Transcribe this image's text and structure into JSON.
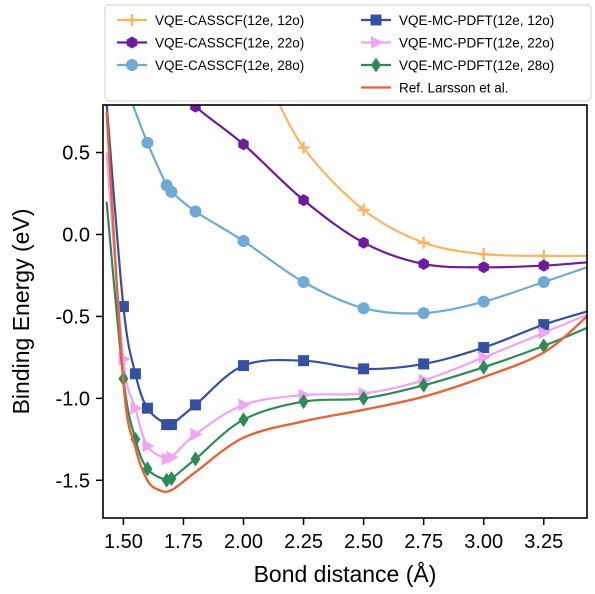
{
  "chart_data": {
    "type": "line",
    "title": "",
    "xlabel": "Bond distance (Å)",
    "ylabel": "Binding Energy (eV)",
    "xlim": [
      1.415,
      3.43
    ],
    "ylim": [
      -1.73,
      0.79
    ],
    "xticks": [
      1.5,
      1.75,
      2.0,
      2.25,
      2.5,
      2.75,
      3.0,
      3.25
    ],
    "xtick_labels": [
      "1.50",
      "1.75",
      "2.00",
      "2.25",
      "2.50",
      "2.75",
      "3.00",
      "3.25"
    ],
    "yticks": [
      -1.5,
      -1.0,
      -0.5,
      0.0,
      0.5
    ],
    "ytick_labels": [
      "-1.5",
      "-1.0",
      "-0.5",
      "0.0",
      "0.5"
    ],
    "grid": false,
    "legend_position": "top, two columns",
    "series": [
      {
        "name": "VQE-CASSCF(12e, 12o)",
        "color": "#fbb661",
        "marker": "plus",
        "x": [
          2.25,
          2.5,
          2.75,
          3.0,
          3.25
        ],
        "y": [
          0.53,
          0.15,
          -0.05,
          -0.12,
          -0.13
        ],
        "curve_x": [
          2.1,
          2.25,
          2.5,
          2.75,
          3.0,
          3.25,
          3.43
        ],
        "curve_y": [
          0.95,
          0.53,
          0.15,
          -0.05,
          -0.12,
          -0.13,
          -0.13
        ]
      },
      {
        "name": "VQE-CASSCF(12e, 22o)",
        "color": "#6e1b9e",
        "marker": "hexagon",
        "x": [
          1.8,
          2.0,
          2.25,
          2.5,
          2.75,
          3.0,
          3.25
        ],
        "y": [
          0.78,
          0.55,
          0.21,
          -0.05,
          -0.18,
          -0.2,
          -0.19
        ],
        "curve_x": [
          1.7,
          1.8,
          2.0,
          2.25,
          2.5,
          2.75,
          3.0,
          3.25,
          3.43
        ],
        "curve_y": [
          0.95,
          0.78,
          0.55,
          0.21,
          -0.05,
          -0.18,
          -0.2,
          -0.19,
          -0.17
        ]
      },
      {
        "name": "VQE-CASSCF(12e, 28o)",
        "color": "#6faad5",
        "marker": "circle",
        "x": [
          1.6,
          1.68,
          1.7,
          1.8,
          2.0,
          2.25,
          2.5,
          2.75,
          3.0,
          3.25
        ],
        "y": [
          0.56,
          0.3,
          0.26,
          0.14,
          -0.04,
          -0.29,
          -0.45,
          -0.48,
          -0.41,
          -0.29
        ],
        "curve_x": [
          1.5,
          1.55,
          1.6,
          1.68,
          1.7,
          1.8,
          2.0,
          2.25,
          2.5,
          2.75,
          3.0,
          3.25,
          3.43
        ],
        "curve_y": [
          0.95,
          0.75,
          0.56,
          0.3,
          0.26,
          0.14,
          -0.04,
          -0.29,
          -0.45,
          -0.48,
          -0.41,
          -0.29,
          -0.2
        ]
      },
      {
        "name": "VQE-MC-PDFT(12e, 12o)",
        "color": "#3450a2",
        "marker": "square",
        "x": [
          1.5,
          1.55,
          1.6,
          1.68,
          1.7,
          1.8,
          2.0,
          2.25,
          2.5,
          2.75,
          3.0,
          3.25
        ],
        "y": [
          -0.44,
          -0.85,
          -1.06,
          -1.16,
          -1.16,
          -1.04,
          -0.8,
          -0.77,
          -0.82,
          -0.79,
          -0.69,
          -0.55
        ],
        "curve_x": [
          1.43,
          1.5,
          1.55,
          1.6,
          1.68,
          1.7,
          1.8,
          2.0,
          2.25,
          2.5,
          2.75,
          3.0,
          3.25,
          3.43
        ],
        "curve_y": [
          0.8,
          -0.44,
          -0.85,
          -1.06,
          -1.16,
          -1.16,
          -1.04,
          -0.8,
          -0.77,
          -0.82,
          -0.79,
          -0.69,
          -0.55,
          -0.47
        ]
      },
      {
        "name": "VQE-MC-PDFT(12e, 22o)",
        "color": "#f0a4f3",
        "marker": "triangle-right",
        "x": [
          1.5,
          1.55,
          1.6,
          1.68,
          1.7,
          1.8,
          2.0,
          2.25,
          2.5,
          2.75,
          3.0,
          3.25
        ],
        "y": [
          -0.76,
          -1.06,
          -1.29,
          -1.37,
          -1.36,
          -1.22,
          -1.04,
          -0.98,
          -0.97,
          -0.89,
          -0.75,
          -0.6
        ],
        "curve_x": [
          1.43,
          1.5,
          1.55,
          1.6,
          1.68,
          1.7,
          1.8,
          2.0,
          2.25,
          2.5,
          2.75,
          3.0,
          3.25,
          3.43
        ],
        "curve_y": [
          0.5,
          -0.76,
          -1.06,
          -1.29,
          -1.37,
          -1.36,
          -1.22,
          -1.04,
          -0.98,
          -0.97,
          -0.89,
          -0.75,
          -0.6,
          -0.49
        ]
      },
      {
        "name": "VQE-MC-PDFT(12e, 28o)",
        "color": "#2e8b57",
        "marker": "diamond",
        "x": [
          1.5,
          1.55,
          1.6,
          1.68,
          1.7,
          1.8,
          2.0,
          2.25,
          2.5,
          2.75,
          3.0,
          3.25
        ],
        "y": [
          -0.88,
          -1.25,
          -1.43,
          -1.5,
          -1.49,
          -1.37,
          -1.13,
          -1.02,
          -1.0,
          -0.92,
          -0.81,
          -0.68
        ],
        "curve_x": [
          1.43,
          1.5,
          1.55,
          1.6,
          1.68,
          1.7,
          1.8,
          2.0,
          2.25,
          2.5,
          2.75,
          3.0,
          3.25,
          3.43
        ],
        "curve_y": [
          0.2,
          -0.88,
          -1.25,
          -1.43,
          -1.5,
          -1.49,
          -1.37,
          -1.13,
          -1.02,
          -1.0,
          -0.92,
          -0.81,
          -0.68,
          -0.57
        ]
      },
      {
        "name": "Ref. Larsson et al.",
        "color": "#e8623a",
        "marker": "none",
        "x": [
          1.43,
          1.5,
          1.55,
          1.6,
          1.65,
          1.7,
          1.8,
          2.0,
          2.25,
          2.5,
          2.75,
          3.0,
          3.25,
          3.43
        ],
        "y": [
          0.75,
          -0.9,
          -1.3,
          -1.5,
          -1.56,
          -1.56,
          -1.45,
          -1.24,
          -1.14,
          -1.07,
          -0.99,
          -0.87,
          -0.72,
          -0.5
        ]
      }
    ]
  }
}
